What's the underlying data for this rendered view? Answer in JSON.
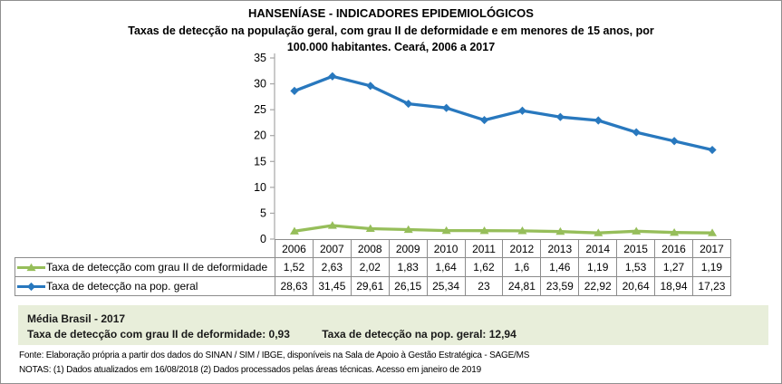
{
  "header": {
    "title": "HANSENÍASE - INDICADORES EPIDEMIOLÓGICOS",
    "subtitle_line1": "Taxas de detecção na população geral, com grau II de deformidade e em menores de 15 anos, por",
    "subtitle_line2": "100.000 habitantes. Ceará, 2006 a 2017"
  },
  "chart_data": {
    "type": "line",
    "categories": [
      "2006",
      "2007",
      "2008",
      "2009",
      "2010",
      "2011",
      "2012",
      "2013",
      "2014",
      "2015",
      "2016",
      "2017"
    ],
    "series": [
      {
        "name": "Taxa de detecção com grau II de deformidade",
        "marker": "triangle",
        "color": "#96be5a",
        "values": [
          1.52,
          2.63,
          2.02,
          1.83,
          1.64,
          1.62,
          1.6,
          1.46,
          1.19,
          1.53,
          1.27,
          1.19
        ]
      },
      {
        "name": "Taxa de detecção na pop. geral",
        "marker": "diamond",
        "color": "#2878be",
        "values": [
          28.63,
          31.45,
          29.61,
          26.15,
          25.34,
          23,
          24.81,
          23.59,
          22.92,
          20.64,
          18.94,
          17.23
        ]
      }
    ],
    "ylim": [
      0,
      35
    ],
    "ytick_step": 5,
    "grid": false,
    "legend_position": "data-table-left",
    "value_format": "pt-BR comma decimals"
  },
  "media_brasil": {
    "title": "Média Brasil - 2017",
    "item1_label": "Taxa de detecção com grau II de deformidade:",
    "item1_value": "0,93",
    "item2_label": "Taxa de detecção na pop. geral:",
    "item2_value": "12,94"
  },
  "footer": {
    "fonte": "Fonte:  Elaboração própria a partir dos dados do  SINAN / SIM / IBGE, disponíveis na Sala de Apoio à Gestão Estratégica -  SAGE/MS",
    "notas": "NOTAS: (1) Dados atualizados em 16/08/2018 (2) Dados processados pelas áreas técnicas. Acesso em janeiro de 2019"
  },
  "colors": {
    "series_deformidade": "#96be5a",
    "series_pop_geral": "#2878be",
    "media_box_bg": "#e8eeda",
    "table_border": "#8c8c8c",
    "axis": "#a6a6a6"
  }
}
